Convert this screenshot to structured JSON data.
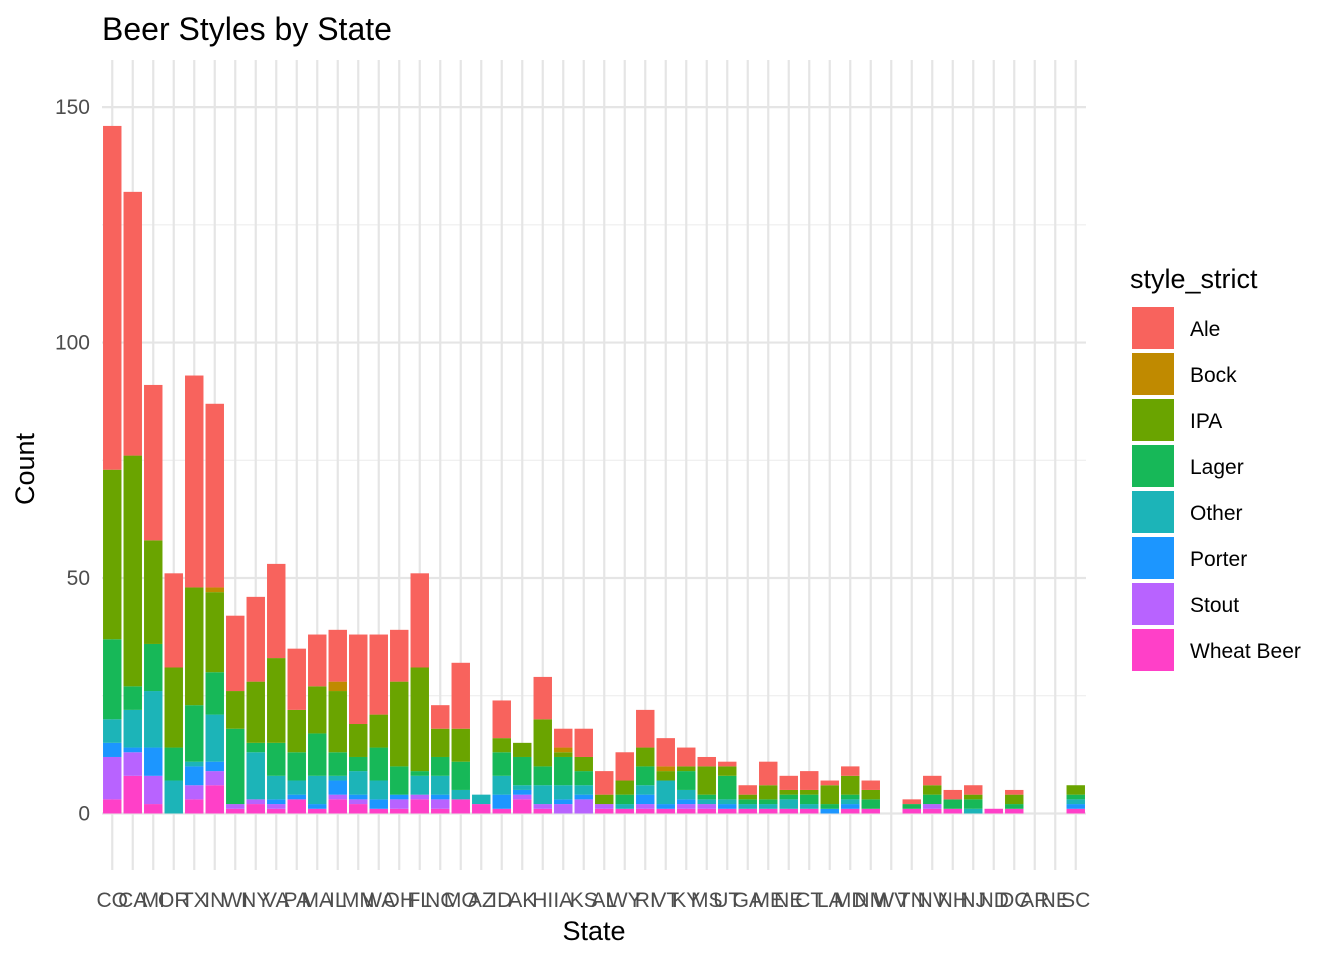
{
  "chart_data": {
    "type": "bar",
    "stacked": true,
    "title": "Beer Styles by State",
    "xlabel": "State",
    "ylabel": "Count",
    "ylim": [
      -12,
      160
    ],
    "yticks": [
      0,
      50,
      100,
      150
    ],
    "grid": true,
    "legend": {
      "title": "style_strict",
      "placement": "right"
    },
    "categories": [
      "CO",
      "CA",
      "MI",
      "OR",
      "TX",
      "IN",
      "WI",
      "NY",
      "VA",
      "PA",
      "MA",
      "IL",
      "MN",
      "WA",
      "OH",
      "FL",
      "NC",
      "MO",
      "AZ",
      "ID",
      "AK",
      "HI",
      "IA",
      "KS",
      "AL",
      "WY",
      "RI",
      "VT",
      "KY",
      "MS",
      "UT",
      "GA",
      "ME",
      "NE",
      "CT",
      "LA",
      "MD",
      "NM",
      "WV",
      "TN",
      "NV",
      "NH",
      "NJ",
      "ND",
      "DC",
      "AR",
      "NE2",
      "SC"
    ],
    "tick_labels": [
      "CO",
      "CA",
      "MI",
      "OR",
      "TX",
      "IN",
      "WI",
      "NY",
      "VA",
      "PA",
      "MA",
      "IL",
      "MN",
      "WA",
      "OH",
      "FL",
      "NC",
      "MO",
      "AZ",
      "ID",
      "AK",
      "HI",
      "IA",
      "KS",
      "AL",
      "WY",
      "RI",
      "VT",
      "KY",
      "MS",
      "UT",
      "GA",
      "ME",
      "NE",
      "CT",
      "LA",
      "MD",
      "NM",
      "WV",
      "TN",
      "NV",
      "NH",
      "NJ",
      "ND",
      "DC",
      "AR",
      "NE",
      "SC"
    ],
    "series": [
      {
        "name": "Wheat Beer",
        "color": "#FF40C8",
        "values": [
          3,
          8,
          2,
          0,
          3,
          6,
          1,
          2,
          1,
          3,
          1,
          3,
          2,
          1,
          1,
          3,
          1,
          3,
          2,
          1,
          3,
          1,
          0,
          0,
          1,
          1,
          1,
          1,
          1,
          1,
          1,
          1,
          1,
          1,
          1,
          0,
          1,
          1,
          0,
          1,
          1,
          1,
          0,
          1,
          1,
          0,
          0,
          1
        ]
      },
      {
        "name": "Stout",
        "color": "#B863FF",
        "values": [
          9,
          5,
          6,
          0,
          3,
          3,
          1,
          1,
          1,
          0,
          0,
          1,
          1,
          0,
          2,
          1,
          2,
          0,
          0,
          0,
          1,
          1,
          2,
          3,
          1,
          0,
          1,
          0,
          1,
          1,
          0,
          0,
          0,
          0,
          0,
          0,
          0,
          0,
          0,
          0,
          1,
          0,
          0,
          0,
          0,
          0,
          0,
          0
        ]
      },
      {
        "name": "Porter",
        "color": "#1C96FF",
        "values": [
          3,
          1,
          6,
          0,
          4,
          2,
          0,
          0,
          1,
          1,
          1,
          3,
          1,
          2,
          1,
          0,
          1,
          0,
          0,
          3,
          1,
          0,
          1,
          1,
          0,
          0,
          2,
          1,
          1,
          0,
          1,
          0,
          0,
          0,
          0,
          1,
          1,
          0,
          0,
          0,
          0,
          0,
          0,
          0,
          0,
          0,
          0,
          1
        ]
      },
      {
        "name": "Other",
        "color": "#1CB4B8",
        "values": [
          5,
          8,
          12,
          7,
          1,
          10,
          0,
          10,
          5,
          3,
          6,
          1,
          5,
          4,
          0,
          4,
          4,
          2,
          2,
          4,
          1,
          4,
          3,
          2,
          0,
          1,
          2,
          5,
          2,
          1,
          1,
          1,
          1,
          2,
          1,
          0,
          1,
          0,
          0,
          0,
          0,
          0,
          1,
          0,
          0,
          0,
          0,
          1
        ]
      },
      {
        "name": "Lager",
        "color": "#17B858",
        "values": [
          17,
          5,
          10,
          7,
          12,
          9,
          16,
          2,
          7,
          6,
          9,
          5,
          3,
          7,
          6,
          1,
          4,
          6,
          0,
          5,
          6,
          4,
          6,
          3,
          0,
          2,
          4,
          0,
          4,
          1,
          5,
          1,
          1,
          1,
          2,
          1,
          1,
          2,
          0,
          1,
          2,
          2,
          2,
          0,
          1,
          0,
          0,
          1
        ]
      },
      {
        "name": "IPA",
        "color": "#6AA400",
        "values": [
          36,
          49,
          22,
          17,
          25,
          17,
          8,
          13,
          18,
          9,
          10,
          13,
          7,
          7,
          18,
          22,
          6,
          7,
          0,
          3,
          3,
          10,
          1,
          3,
          2,
          3,
          4,
          2,
          1,
          6,
          2,
          1,
          3,
          1,
          1,
          4,
          4,
          2,
          0,
          0,
          2,
          0,
          1,
          0,
          2,
          0,
          0,
          2
        ]
      },
      {
        "name": "Bock",
        "color": "#C08A00",
        "values": [
          0,
          0,
          0,
          0,
          0,
          1,
          0,
          0,
          0,
          0,
          0,
          2,
          0,
          0,
          0,
          0,
          0,
          0,
          0,
          0,
          0,
          0,
          1,
          0,
          0,
          0,
          0,
          1,
          0,
          0,
          0,
          0,
          0,
          0,
          0,
          0,
          0,
          0,
          0,
          0,
          0,
          0,
          0,
          0,
          0,
          0,
          0,
          0
        ]
      },
      {
        "name": "Ale",
        "color": "#F8635D",
        "values": [
          73,
          56,
          33,
          20,
          45,
          39,
          16,
          18,
          20,
          13,
          11,
          11,
          19,
          17,
          11,
          20,
          5,
          14,
          0,
          8,
          0,
          9,
          4,
          6,
          5,
          6,
          8,
          6,
          4,
          2,
          1,
          2,
          5,
          3,
          4,
          1,
          2,
          2,
          0,
          1,
          2,
          2,
          2,
          0,
          1,
          0,
          0,
          0
        ]
      }
    ]
  }
}
